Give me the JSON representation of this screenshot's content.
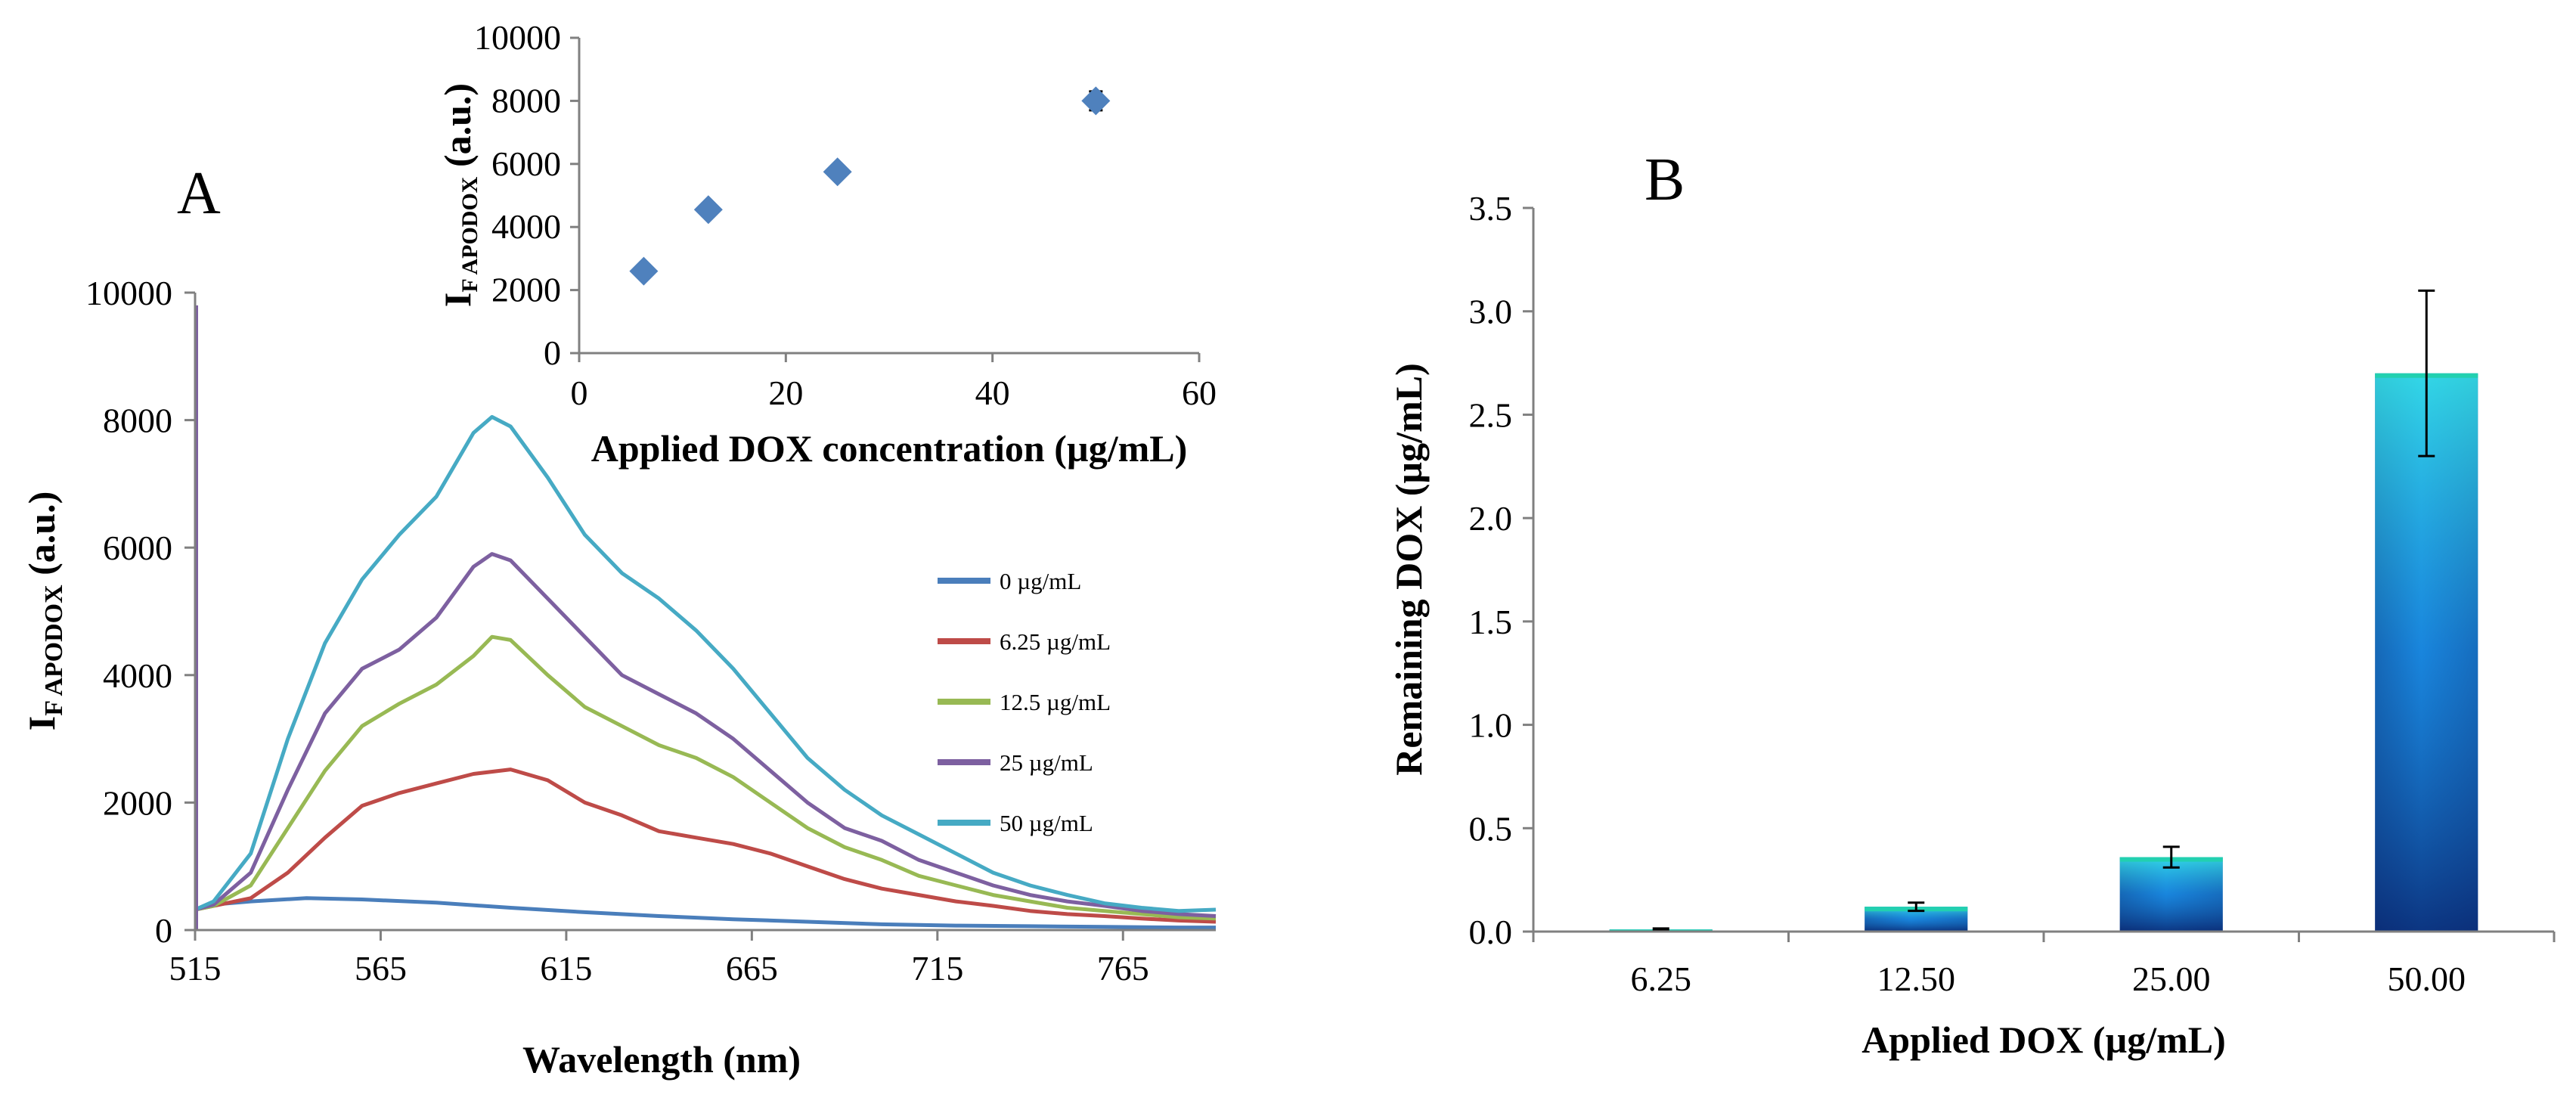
{
  "chart_data": [
    {
      "panel": "A",
      "type": "line",
      "panel_label": "A",
      "xlabel": "Wavelength (nm)",
      "ylabel_main": "I",
      "ylabel_sub": "F APODOX",
      "ylabel_unit": " (a.u.)",
      "xlim": [
        515,
        790
      ],
      "ylim": [
        0,
        10000
      ],
      "xticks": [
        515,
        565,
        615,
        665,
        715,
        765
      ],
      "yticks": [
        0,
        2000,
        4000,
        6000,
        8000,
        10000
      ],
      "colors": {
        "s0": "#4a7ebb",
        "s1": "#be4b48",
        "s2": "#98b954",
        "s3": "#7d60a0",
        "s4": "#46aac4"
      },
      "series": [
        {
          "name": "0 µg/mL",
          "color": "#4a7ebb",
          "x": [
            515,
            520,
            530,
            545,
            560,
            580,
            600,
            620,
            640,
            660,
            680,
            700,
            720,
            740,
            760,
            780,
            790
          ],
          "y": [
            320,
            400,
            450,
            500,
            480,
            430,
            350,
            280,
            220,
            170,
            130,
            90,
            70,
            60,
            50,
            40,
            40
          ]
        },
        {
          "name": "6.25 µg/mL",
          "color": "#be4b48",
          "x": [
            515,
            520,
            530,
            540,
            550,
            560,
            570,
            580,
            590,
            600,
            610,
            620,
            630,
            640,
            650,
            660,
            670,
            680,
            690,
            700,
            710,
            720,
            730,
            740,
            750,
            760,
            770,
            780,
            790
          ],
          "y": [
            320,
            380,
            500,
            900,
            1450,
            1950,
            2150,
            2300,
            2450,
            2520,
            2350,
            2000,
            1800,
            1550,
            1450,
            1350,
            1200,
            1000,
            800,
            650,
            550,
            450,
            380,
            300,
            250,
            220,
            180,
            150,
            130
          ]
        },
        {
          "name": "12.5 µg/mL",
          "color": "#98b954",
          "x": [
            515,
            520,
            530,
            540,
            550,
            560,
            570,
            580,
            590,
            595,
            600,
            610,
            620,
            630,
            640,
            650,
            660,
            670,
            680,
            690,
            700,
            710,
            720,
            730,
            740,
            750,
            760,
            770,
            780,
            790
          ],
          "y": [
            320,
            380,
            700,
            1600,
            2500,
            3200,
            3550,
            3850,
            4300,
            4600,
            4550,
            4000,
            3500,
            3200,
            2900,
            2700,
            2400,
            2000,
            1600,
            1300,
            1100,
            850,
            700,
            550,
            450,
            350,
            300,
            250,
            200,
            180
          ]
        },
        {
          "name": "25 µg/mL",
          "color": "#7d60a0",
          "x": [
            515,
            520,
            530,
            540,
            550,
            560,
            570,
            580,
            590,
            595,
            600,
            610,
            620,
            630,
            640,
            650,
            660,
            670,
            680,
            690,
            700,
            710,
            720,
            730,
            740,
            750,
            760,
            770,
            780,
            790
          ],
          "y": [
            320,
            400,
            900,
            2200,
            3400,
            4100,
            4400,
            4900,
            5700,
            5900,
            5800,
            5200,
            4600,
            4000,
            3700,
            3400,
            3000,
            2500,
            2000,
            1600,
            1400,
            1100,
            900,
            700,
            550,
            450,
            380,
            300,
            250,
            220
          ]
        },
        {
          "name": "50 µg/mL",
          "color": "#46aac4",
          "x": [
            515,
            520,
            530,
            540,
            550,
            560,
            570,
            580,
            590,
            595,
            600,
            610,
            620,
            630,
            640,
            650,
            660,
            670,
            680,
            690,
            700,
            710,
            720,
            730,
            740,
            750,
            760,
            770,
            780,
            790
          ],
          "y": [
            320,
            450,
            1200,
            3000,
            4500,
            5500,
            6200,
            6800,
            7800,
            8050,
            7900,
            7100,
            6200,
            5600,
            5200,
            4700,
            4100,
            3400,
            2700,
            2200,
            1800,
            1500,
            1200,
            900,
            700,
            550,
            420,
            350,
            300,
            320
          ]
        }
      ],
      "legend": [
        "0 µg/mL",
        "6.25 µg/mL",
        "12.5 µg/mL",
        "25 µg/mL",
        "50 µg/mL"
      ],
      "legend_position": "right"
    },
    {
      "panel": "A-inset",
      "type": "scatter",
      "xlabel": "Applied DOX concentration (µg/mL)",
      "ylabel_main": "I",
      "ylabel_sub": "F APODOX",
      "ylabel_unit": " (a.u.)",
      "xlim": [
        0,
        60
      ],
      "ylim": [
        0,
        10000
      ],
      "xticks": [
        0,
        20,
        40,
        60
      ],
      "yticks": [
        0,
        2000,
        4000,
        6000,
        8000,
        10000
      ],
      "marker_color": "#4f81bd",
      "x": [
        6.25,
        12.5,
        25,
        50
      ],
      "y": [
        2600,
        4550,
        5750,
        8000
      ],
      "yerr": [
        150,
        200,
        150,
        300
      ]
    },
    {
      "panel": "B",
      "type": "bar",
      "panel_label": "B",
      "xlabel": "Applied DOX (µg/mL)",
      "ylabel": "Remaining DOX (µg/mL)",
      "categories": [
        "6.25",
        "12.50",
        "25.00",
        "50.00"
      ],
      "values": [
        0.01,
        0.12,
        0.36,
        2.7
      ],
      "errors": [
        0.005,
        0.02,
        0.05,
        0.4
      ],
      "ylim": [
        0,
        3.5
      ],
      "yticks": [
        "0.0",
        "0.5",
        "1.0",
        "1.5",
        "2.0",
        "2.5",
        "3.0",
        "3.5"
      ],
      "bar_colors": {
        "dark": "#0b2e78",
        "mid": "#1478d8",
        "light": "#38e8ea",
        "top": "#22d0b0"
      }
    }
  ]
}
